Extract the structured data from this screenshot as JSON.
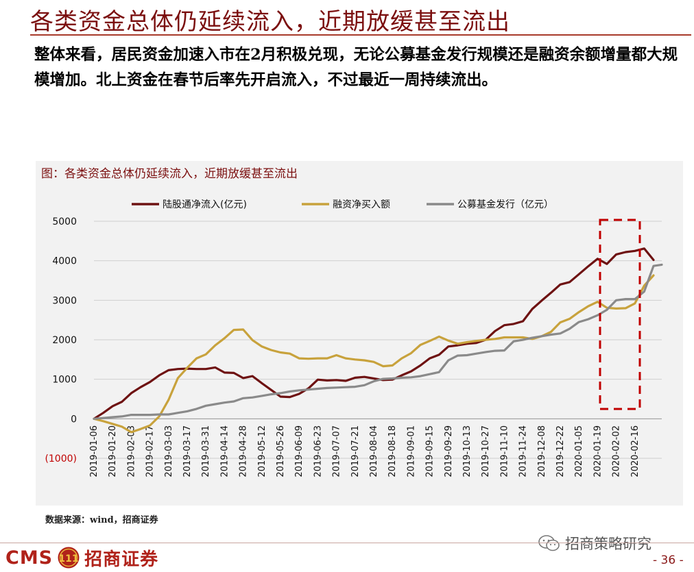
{
  "slide": {
    "title": "各类资金总体仍延续流入，近期放缓甚至流出",
    "intro": "整体来看，居民资金加速入市在2月积极兑现，无论公募基金发行规模还是融资余额增量都大规模增加。北上资金在春节后率先开启流入，不过最近一周持续流出。",
    "source": "数据来源：wind，招商证券",
    "wechat": "招商策略研究",
    "page_number": "- 36 -",
    "logo_latin": "CMS",
    "logo_emblem": "111",
    "logo_chinese": "招商证券"
  },
  "colors": {
    "title": "#7b0f0f",
    "series_north": "#6e1212",
    "series_margin": "#c8a23c",
    "series_fund": "#8a8a8a",
    "highlight_box": "#c00000"
  },
  "chart_data": {
    "type": "line",
    "title": "图：各类资金总体仍延续流入，近期放缓甚至流出",
    "xlabel": "",
    "ylabel": "",
    "ylim": [
      -1000,
      5000
    ],
    "yticks": [
      -1000,
      0,
      1000,
      2000,
      3000,
      4000,
      5000
    ],
    "ytick_labels": [
      "(1000)",
      "0",
      "1000",
      "2000",
      "3000",
      "4000",
      "5000"
    ],
    "grid": true,
    "legend_position": "top",
    "x_tick_labels": [
      "2019-01-06",
      "2019-01-20",
      "2019-02-03",
      "2019-02-17",
      "2019-03-03",
      "2019-03-17",
      "2019-03-31",
      "2019-04-14",
      "2019-04-28",
      "2019-05-12",
      "2019-05-26",
      "2019-06-09",
      "2019-06-23",
      "2019-07-07",
      "2019-07-21",
      "2019-08-04",
      "2019-08-18",
      "2019-09-01",
      "2019-09-15",
      "2019-09-29",
      "2019-10-13",
      "2019-10-27",
      "2019-11-10",
      "2019-11-24",
      "2019-12-08",
      "2019-12-22",
      "2020-01-05",
      "2020-01-19",
      "2020-02-02",
      "2020-02-16"
    ],
    "x": [
      "2019-01-06",
      "2019-01-13",
      "2019-01-20",
      "2019-01-27",
      "2019-02-03",
      "2019-02-10",
      "2019-02-17",
      "2019-02-24",
      "2019-03-03",
      "2019-03-10",
      "2019-03-17",
      "2019-03-24",
      "2019-03-31",
      "2019-04-07",
      "2019-04-14",
      "2019-04-21",
      "2019-04-28",
      "2019-05-05",
      "2019-05-12",
      "2019-05-19",
      "2019-05-26",
      "2019-06-02",
      "2019-06-09",
      "2019-06-16",
      "2019-06-23",
      "2019-06-30",
      "2019-07-07",
      "2019-07-14",
      "2019-07-21",
      "2019-07-28",
      "2019-08-04",
      "2019-08-11",
      "2019-08-18",
      "2019-08-25",
      "2019-09-01",
      "2019-09-08",
      "2019-09-15",
      "2019-09-22",
      "2019-09-29",
      "2019-10-06",
      "2019-10-13",
      "2019-10-20",
      "2019-10-27",
      "2019-11-03",
      "2019-11-10",
      "2019-11-17",
      "2019-11-24",
      "2019-12-01",
      "2019-12-08",
      "2019-12-15",
      "2019-12-22",
      "2019-12-29",
      "2020-01-05",
      "2020-01-12",
      "2020-01-19",
      "2020-01-26",
      "2020-02-02",
      "2020-02-09",
      "2020-02-16",
      "2020-02-23",
      "2020-03-01"
    ],
    "series": [
      {
        "name": "陆股通净流入(亿元)",
        "color_key": "series_north",
        "values": [
          0,
          150,
          320,
          430,
          650,
          800,
          930,
          1100,
          1230,
          1260,
          1270,
          1260,
          1260,
          1300,
          1170,
          1160,
          1030,
          1080,
          900,
          730,
          560,
          550,
          630,
          770,
          990,
          970,
          980,
          960,
          1040,
          1060,
          1020,
          980,
          990,
          1100,
          1200,
          1350,
          1530,
          1620,
          1830,
          1860,
          1900,
          1920,
          2000,
          2220,
          2370,
          2400,
          2470,
          2780,
          2990,
          3190,
          3400,
          3460,
          3660,
          3860,
          4050,
          3920,
          4160,
          4220,
          4250,
          4310,
          4020
        ]
      },
      {
        "name": "融资净买入额",
        "color_key": "series_margin",
        "values": [
          0,
          -60,
          -130,
          -200,
          -340,
          -260,
          -170,
          60,
          480,
          1030,
          1290,
          1530,
          1630,
          1860,
          2040,
          2250,
          2260,
          1990,
          1830,
          1740,
          1680,
          1650,
          1530,
          1520,
          1530,
          1530,
          1610,
          1530,
          1500,
          1480,
          1440,
          1330,
          1350,
          1530,
          1660,
          1870,
          1970,
          2080,
          1980,
          1900,
          1940,
          1970,
          2000,
          2020,
          2060,
          2060,
          2060,
          2020,
          2090,
          2200,
          2440,
          2530,
          2700,
          2850,
          2960,
          2810,
          2790,
          2800,
          2920,
          3370,
          3630
        ]
      },
      {
        "name": "公募基金发行（亿元）",
        "color_key": "series_fund",
        "values": [
          0,
          20,
          40,
          60,
          100,
          100,
          100,
          110,
          110,
          150,
          190,
          250,
          330,
          370,
          410,
          440,
          520,
          540,
          580,
          620,
          650,
          690,
          720,
          740,
          760,
          780,
          790,
          800,
          810,
          850,
          950,
          1010,
          1020,
          1040,
          1050,
          1080,
          1130,
          1180,
          1480,
          1600,
          1610,
          1650,
          1690,
          1720,
          1730,
          1960,
          2000,
          2050,
          2090,
          2130,
          2160,
          2280,
          2450,
          2520,
          2620,
          2760,
          3000,
          3030,
          3030,
          3220,
          3870
        ]
      }
    ],
    "series_extension": {
      "name": "公募基金发行（亿元）",
      "final_value": 3900
    },
    "annotation": "dashed red box highlighting 2020-02 period"
  }
}
